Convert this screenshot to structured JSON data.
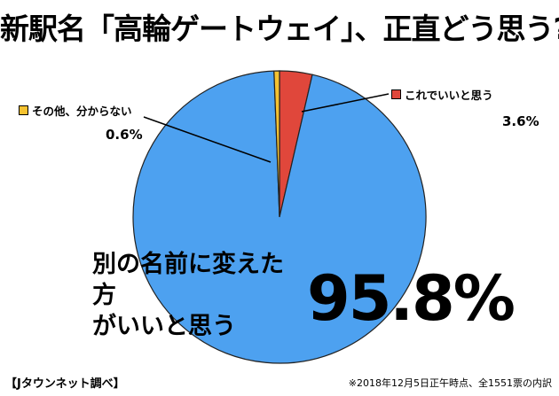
{
  "title": "新駅名「高輪ゲートウェイ」、正直どう思う?",
  "chart_data": {
    "type": "pie",
    "title": "新駅名「高輪ゲートウェイ」、正直どう思う?",
    "slices": [
      {
        "label": "これでいいと思う",
        "value": 3.6,
        "value_label": "3.6%",
        "color": "#e0473b"
      },
      {
        "label": "別の名前に変えた方がいいと思う",
        "value": 95.8,
        "value_label": "95.8%",
        "color": "#4da1f0"
      },
      {
        "label": "その他、分からない",
        "value": 0.6,
        "value_label": "0.6%",
        "color": "#f5c230"
      }
    ],
    "start_angle_deg": 0,
    "direction": "clockwise"
  },
  "labels": {
    "big_label_line1": "別の名前に変えた方",
    "big_label_line2": "がいいと思う"
  },
  "source": "【Jタウンネット調べ】",
  "note": "※2018年12月5日正午時点、全1551票の内訳"
}
